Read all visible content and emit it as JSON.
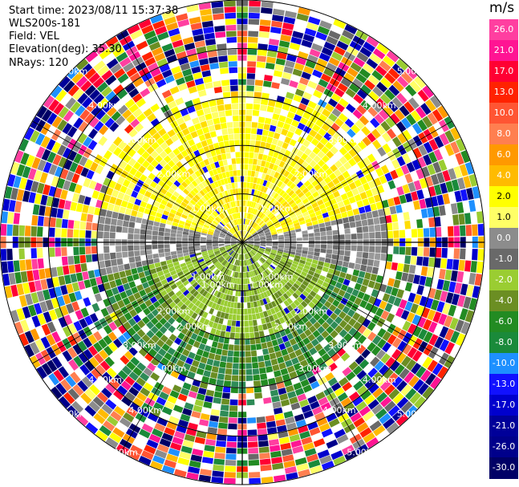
{
  "header": {
    "start_time": "Start time: 2023/08/11 15:37:38",
    "instrument": "WLS200s-181",
    "field": "Field: VEL",
    "elevation": "Elevation(deg): 35.30",
    "nrays": "NRays: 120"
  },
  "colorbar": {
    "unit": "m/s",
    "ticks": [
      "26.0",
      "21.0",
      "17.0",
      "13.0",
      "10.0",
      "8.0",
      "6.0",
      "4.0",
      "2.0",
      "1.0",
      "0.0",
      "-1.0",
      "-2.0",
      "-4.0",
      "-6.0",
      "-8.0",
      "-10.0",
      "-13.0",
      "-17.0",
      "-21.0",
      "-26.0",
      "-30.0"
    ],
    "colors": [
      "#ff3fa0",
      "#ff1493",
      "#ff0033",
      "#ff2200",
      "#ff5533",
      "#ff7f50",
      "#ff9900",
      "#ffbb00",
      "#ffff00",
      "#ffff66",
      "#8c8c8c",
      "#696969",
      "#9acd32",
      "#6b8e23",
      "#228b22",
      "#1a8a3a",
      "#1e90ff",
      "#1111ff",
      "#0000cd",
      "#000099",
      "#00008b",
      "#000066"
    ]
  },
  "chart_data": {
    "type": "heatmap",
    "subtype": "PPI (plan position indicator) polar velocity scan",
    "field": "VEL",
    "units": "m/s",
    "elevation_deg": 35.3,
    "n_rays": 120,
    "range_rings_km": [
      1.0,
      2.0,
      3.0,
      4.0,
      5.0
    ],
    "ring_labels": [
      "1.00km",
      "2.00km",
      "3.00km",
      "4.00km",
      "5.00km"
    ],
    "color_scale_ticks": [
      26.0,
      21.0,
      17.0,
      13.0,
      10.0,
      8.0,
      6.0,
      4.0,
      2.0,
      1.0,
      0.0,
      -1.0,
      -2.0,
      -4.0,
      -6.0,
      -8.0,
      -10.0,
      -13.0,
      -17.0,
      -21.0,
      -26.0,
      -30.0
    ],
    "pattern": {
      "near_range_north": "positive ~2 to 4 m/s (yellow)",
      "near_range_south": "negative ~-1 to -6 m/s (green)",
      "east_west_axis": "~0 m/s (grey)",
      "far_range": "noise, all values"
    },
    "grid": true
  }
}
